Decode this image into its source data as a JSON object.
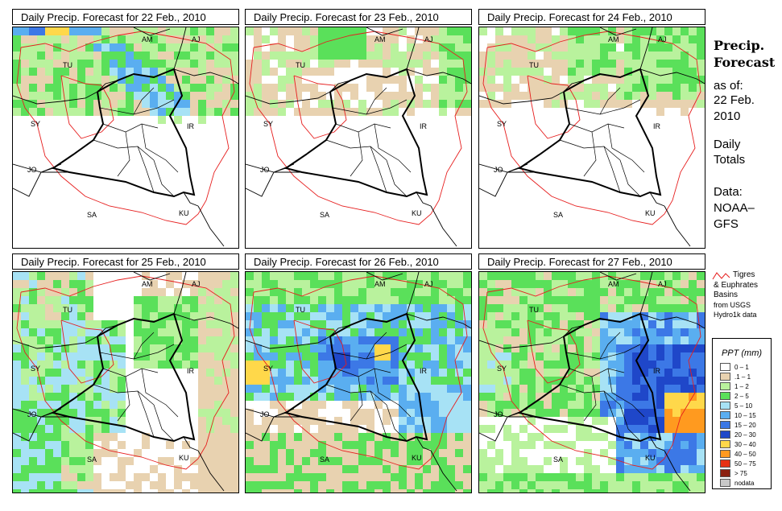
{
  "panels": [
    {
      "title": "Daily Precip. Forecast for  22 Feb., 2010"
    },
    {
      "title": "Daily Precip. Forecast for  23 Feb., 2010"
    },
    {
      "title": "Daily Precip. Forecast for  24 Feb., 2010"
    },
    {
      "title": "Daily Precip. Forecast for  25 Feb., 2010"
    },
    {
      "title": "Daily Precip. Forecast for  26 Feb., 2010"
    },
    {
      "title": "Daily Precip. Forecast for  27 Feb., 2010"
    }
  ],
  "map_labels": [
    "AM",
    "AJ",
    "TU",
    "SY",
    "IR",
    "JO",
    "SA",
    "KU"
  ],
  "side": {
    "title1": "Precip.",
    "title2": "Forecast",
    "asof": "as of:",
    "date1": "22 Feb.",
    "date2": "2010",
    "daily1": "Daily",
    "daily2": "Totals",
    "data1": "Data:",
    "data2": "NOAA–",
    "data3": "GFS"
  },
  "basin_legend": {
    "line1": "Tigres",
    "line2": "& Euphrates",
    "line3": "Basins",
    "line4": "from USGS",
    "line5": "Hydro1k data"
  },
  "legend": {
    "title": "PPT (mm)",
    "items": [
      {
        "label": "0 – 1",
        "color": "#ffffff"
      },
      {
        "label": ".1 – 1",
        "color": "#e8d2b0"
      },
      {
        "label": "1 – 2",
        "color": "#b9f29d"
      },
      {
        "label": "2 – 5",
        "color": "#5ae05a"
      },
      {
        "label": "5 – 10",
        "color": "#a7e2f5"
      },
      {
        "label": "10 – 15",
        "color": "#5aaef0"
      },
      {
        "label": "15 – 20",
        "color": "#3c78e6"
      },
      {
        "label": "20 – 30",
        "color": "#1f47c9"
      },
      {
        "label": "30 – 40",
        "color": "#ffd84a"
      },
      {
        "label": "40 – 50",
        "color": "#ff9a1f"
      },
      {
        "label": "50 – 75",
        "color": "#e63214"
      },
      {
        "label": "> 75",
        "color": "#8b2010"
      },
      {
        "label": "nodata",
        "color": "#c8c8c8"
      }
    ]
  }
}
